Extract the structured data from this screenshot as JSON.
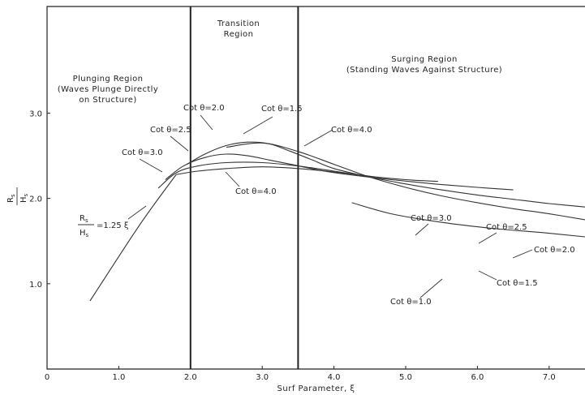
{
  "chart_data": {
    "type": "line",
    "title": "",
    "xlabel": "Surf Parameter, ξ",
    "ylabel": {
      "numerator": "R",
      "numerator_sub": "s",
      "denominator": "H",
      "denominator_sub": "s"
    },
    "xlim": [
      0,
      7.5
    ],
    "ylim": [
      0,
      4.25
    ],
    "x_ticks": [
      0,
      1.0,
      2.0,
      3.0,
      4.0,
      5.0,
      6.0,
      7.0
    ],
    "x_tick_labels": [
      "0",
      "1.0",
      "2.0",
      "3.0",
      "4.0",
      "5.0",
      "6.0",
      "7.0"
    ],
    "y_ticks": [
      1.0,
      2.0,
      3.0
    ],
    "y_tick_labels": [
      "1.0",
      "2.0",
      "3.0"
    ],
    "grid": false,
    "legend": "none",
    "region_boundaries": [
      2.0,
      3.5
    ],
    "regions": [
      {
        "lines": [
          "Plunging Region",
          "(Waves Plunge Directly",
          "on Structure)"
        ]
      },
      {
        "lines": [
          "Transition",
          "Region"
        ]
      },
      {
        "lines": [
          "Surging Region",
          "(Standing Waves Against Structure)"
        ]
      }
    ],
    "formula": {
      "lhs_numerator": "R",
      "lhs_numerator_sub": "s",
      "lhs_denominator": "H",
      "lhs_denominator_sub": "s",
      "rhs": "=1.25 ξ"
    },
    "series": [
      {
        "label": "Cot θ=1.0",
        "x": [
          4.25,
          4.8,
          5.5,
          6.2,
          6.9,
          7.5
        ],
        "y": [
          1.95,
          1.82,
          1.72,
          1.65,
          1.6,
          1.55
        ]
      },
      {
        "label": "Cot θ=1.5",
        "x": [
          2.5,
          3.0,
          3.5,
          4.0,
          4.5,
          5.0,
          5.5,
          6.0,
          6.5,
          7.0,
          7.5
        ],
        "y": [
          2.6,
          2.65,
          2.55,
          2.4,
          2.25,
          2.13,
          2.03,
          1.95,
          1.88,
          1.82,
          1.75
        ]
      },
      {
        "label": "Cot θ=2.0",
        "x": [
          1.95,
          2.2,
          2.5,
          2.8,
          3.1,
          3.4,
          3.7,
          4.0,
          4.5,
          5.0,
          5.5,
          6.0,
          6.5,
          7.0,
          7.5
        ],
        "y": [
          2.4,
          2.52,
          2.62,
          2.66,
          2.64,
          2.55,
          2.45,
          2.35,
          2.25,
          2.17,
          2.1,
          2.04,
          1.99,
          1.94,
          1.9
        ]
      },
      {
        "label": "Cot θ=2.5",
        "x": [
          1.65,
          1.9,
          2.2,
          2.5,
          2.8,
          3.1,
          3.4,
          3.8,
          4.2,
          4.8,
          5.4,
          6.0,
          6.5
        ],
        "y": [
          2.22,
          2.38,
          2.48,
          2.52,
          2.5,
          2.45,
          2.4,
          2.33,
          2.28,
          2.22,
          2.17,
          2.13,
          2.1
        ]
      },
      {
        "label": "Cot θ=3.0",
        "x": [
          1.55,
          1.8,
          2.1,
          2.5,
          3.0,
          3.5,
          4.0,
          4.5,
          5.0,
          5.45
        ],
        "y": [
          2.12,
          2.3,
          2.38,
          2.42,
          2.42,
          2.38,
          2.32,
          2.26,
          2.22,
          2.2
        ]
      },
      {
        "label": "Cot θ=4.0",
        "x": [
          1.8,
          2.1,
          2.5,
          3.0,
          3.5,
          4.0,
          4.5
        ],
        "y": [
          2.28,
          2.32,
          2.35,
          2.37,
          2.35,
          2.31,
          2.26
        ]
      },
      {
        "label": "",
        "x": [
          0.6,
          1.3,
          1.8
        ],
        "y": [
          0.8,
          1.7,
          2.28
        ]
      }
    ]
  }
}
